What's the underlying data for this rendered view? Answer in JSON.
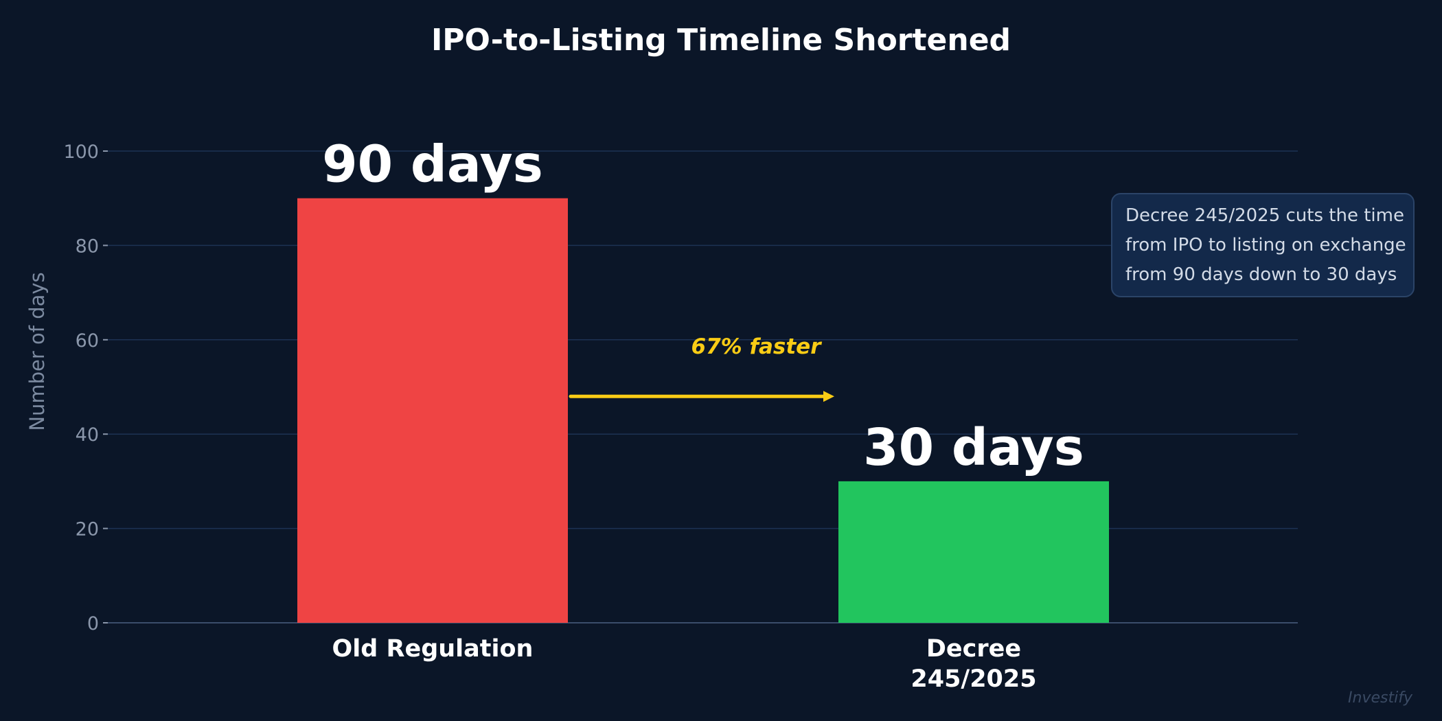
{
  "chart_data": {
    "type": "bar",
    "title": "IPO-to-Listing Timeline Shortened",
    "xlabel": "",
    "ylabel": "Number of days",
    "categories": [
      "Old Regulation",
      "Decree 245/2025"
    ],
    "category_label_lines": [
      [
        "Old Regulation"
      ],
      [
        "Decree",
        "245/2025"
      ]
    ],
    "values": [
      90,
      30
    ],
    "bar_colors": [
      "#ef4444",
      "#22c55e"
    ],
    "data_labels": [
      "90 days",
      "30 days"
    ],
    "ylim": [
      0,
      100
    ],
    "y_ticks": [
      0,
      20,
      40,
      60,
      80,
      100
    ],
    "grid": true,
    "arrow_annotation": {
      "text": "67% faster",
      "color": "#facc15",
      "at_value": 48
    },
    "note_lines": [
      "Decree 245/2025 cuts the time",
      "from IPO to listing on exchange",
      "from 90 days down to 30 days"
    ],
    "watermark": "Investify"
  },
  "theme": {
    "background": "#0b1628",
    "grid_color": "#1d3254",
    "axis_color": "#3b4d6b",
    "text_color": "#ffffff",
    "muted_text": "#8b97ab"
  }
}
